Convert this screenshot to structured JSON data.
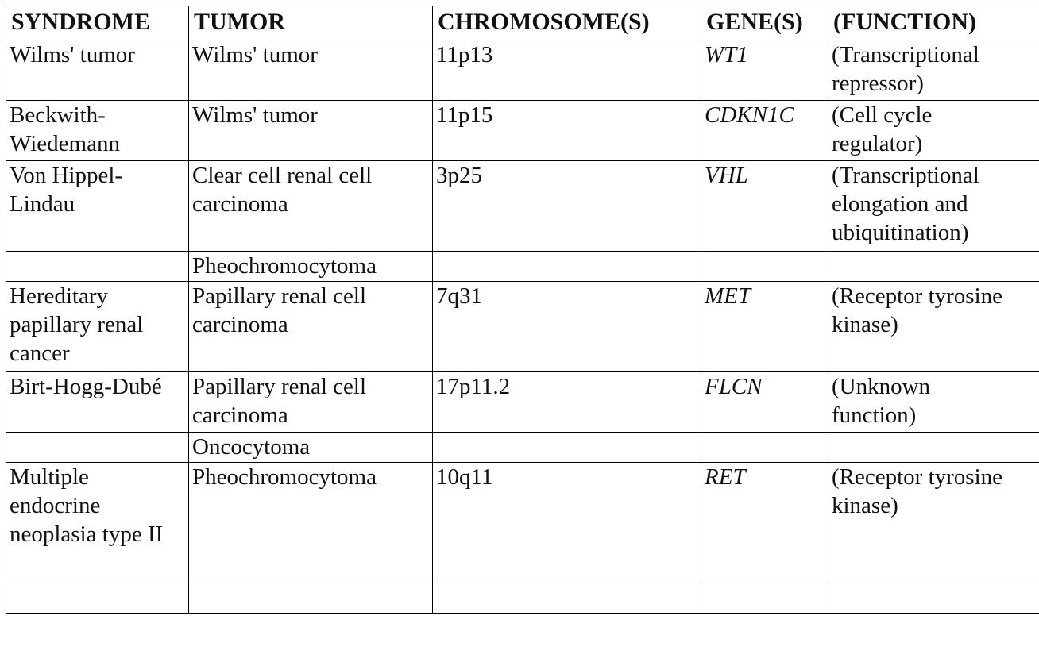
{
  "table": {
    "headers": [
      "SYNDROME",
      "TUMOR",
      "CHROMOSOME(S)",
      "GENE(S)",
      "(FUNCTION)"
    ],
    "rows": [
      {
        "syndrome": "Wilms' tumor",
        "tumor": "Wilms' tumor",
        "chromosome": "11p13",
        "gene": "WT1",
        "function_line1": "(Transcriptional",
        "function_line2": "repressor)"
      },
      {
        "syndrome": "Beckwith-Wiedemann",
        "tumor": "Wilms' tumor",
        "chromosome": "11p15",
        "gene": "CDKN1C",
        "function_line1": "(Cell cycle",
        "function_line2": "regulator)"
      },
      {
        "syndrome": "Von Hippel-Lindau",
        "tumor": "Clear cell renal cell carcinoma",
        "chromosome": "3p25",
        "gene": "VHL",
        "function_line1": "(Transcriptional",
        "function_line2": "elongation and",
        "function_line3": "ubiquitination)"
      },
      {
        "syndrome": "",
        "tumor": "Pheochromocytoma",
        "chromosome": "",
        "gene": "",
        "function_line1": ""
      },
      {
        "syndrome": "Hereditary papillary renal cancer",
        "tumor": "Papillary renal cell carcinoma",
        "chromosome": "7q31",
        "gene": "MET",
        "function_line1": "(Receptor tyrosine",
        "function_line2": "kinase)"
      },
      {
        "syndrome": "Birt-Hogg-Dubé",
        "tumor": "Papillary renal cell carcinoma",
        "chromosome": "17p11.2",
        "gene": "FLCN",
        "function_line1": "(Unknown",
        "function_line2": "function)"
      },
      {
        "syndrome": "",
        "tumor": "Oncocytoma",
        "chromosome": "",
        "gene": "",
        "function_line1": ""
      },
      {
        "syndrome": "Multiple endocrine neoplasia type II",
        "tumor": "Pheochromocytoma",
        "chromosome": "10q11",
        "gene": "RET",
        "function_line1": "(Receptor tyrosine",
        "function_line2": "kinase)"
      },
      {
        "syndrome": "",
        "tumor": "",
        "chromosome": "",
        "gene": "",
        "function_line1": ""
      }
    ]
  }
}
